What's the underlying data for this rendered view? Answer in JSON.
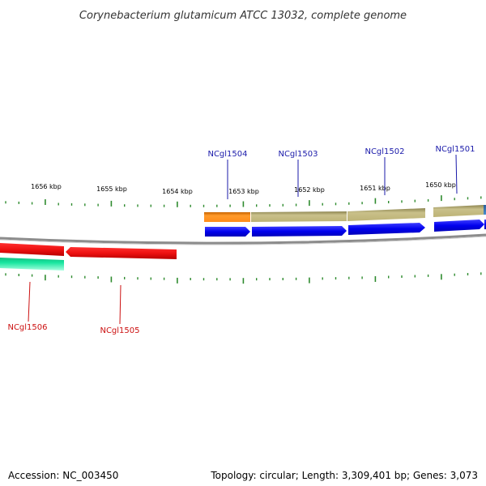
{
  "title": "Corynebacterium glutamicum ATCC 13032, complete genome",
  "footer": {
    "accession": "Accession: NC_003450",
    "summary": "Topology: circular; Length: 3,309,401 bp; Genes: 3,073"
  },
  "colors": {
    "backbone": "#8c8c8c",
    "tick": "#2e8b2e",
    "forward_label": "#1a1aaa",
    "reverse_label": "#cc1111",
    "cds_forward": "#0000ee",
    "cds_reverse": "#ee1111",
    "gene_orange": "#ff8c1a",
    "gene_khaki": "#bdb376",
    "gene_teal": "#1ae6a0",
    "gene_steelblue": "#3a7ec0"
  },
  "ruler": {
    "labels": [
      "1656 kbp",
      "1655 kbp",
      "1654 kbp",
      "1653 kbp",
      "1652 kbp",
      "1651 kbp",
      "1650 kbp"
    ]
  },
  "genes": {
    "forward": [
      {
        "name": "NCgl1504",
        "color": "#1a1aaa"
      },
      {
        "name": "NCgl1503",
        "color": "#1a1aaa"
      },
      {
        "name": "NCgl1502",
        "color": "#1a1aaa"
      },
      {
        "name": "NCgl1501",
        "color": "#1a1aaa"
      }
    ],
    "reverse": [
      {
        "name": "NCgl1506",
        "color": "#cc1111"
      },
      {
        "name": "NCgl1505",
        "color": "#cc1111"
      }
    ]
  }
}
